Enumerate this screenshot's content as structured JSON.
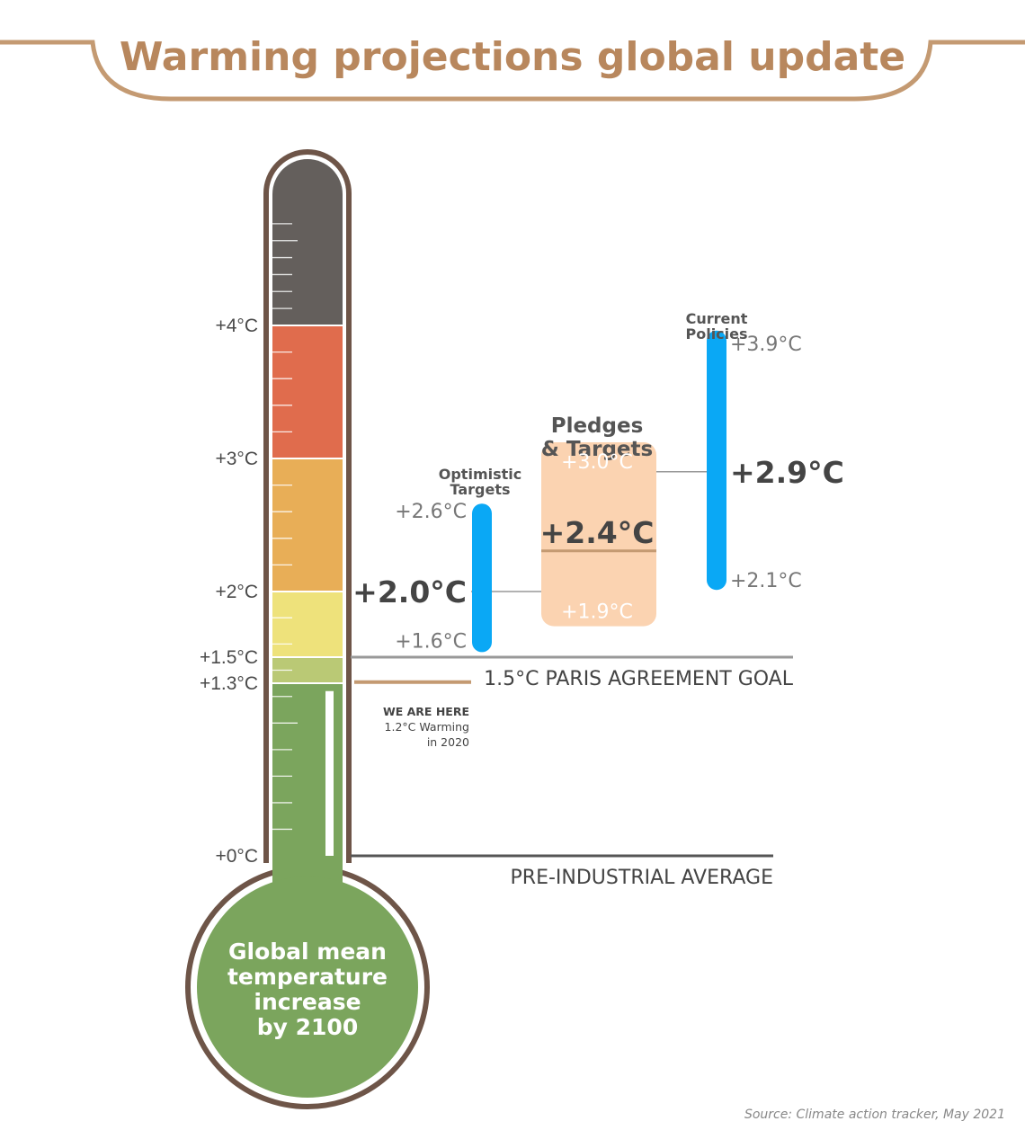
{
  "title": "Warming projections global update",
  "source": "Source: Climate action tracker, May 2021",
  "colors": {
    "accent": "#c49a72",
    "title": "#b8875d",
    "outline": "#6e5548",
    "blue": "#0aa8f5",
    "pledge_fill": "#fbd3b1",
    "bands": [
      "#7ba55d",
      "#bac975",
      "#eee27b",
      "#e8ae57",
      "#e06c4d",
      "#645f5c"
    ]
  },
  "thermometer": {
    "bulb_lines": [
      "Global mean",
      "temperature",
      "increase",
      "by 2100"
    ],
    "tick_labels": [
      "+0°C",
      "+1.3°C",
      "+1.5°C",
      "+2°C",
      "+3°C",
      "+4°C"
    ]
  },
  "markers": {
    "now_lines": [
      "WE ARE HERE",
      "1.2°C Warming",
      "in 2020"
    ],
    "paris_label": "1.5°C PARIS AGREEMENT GOAL",
    "pre_label": "PRE-INDUSTRIAL AVERAGE"
  },
  "chart_data": {
    "type": "bar",
    "title": "Warming projections global update",
    "unit": "°C",
    "ylim": [
      0,
      5.4
    ],
    "scale_ticks": [
      0,
      1.3,
      1.5,
      2,
      3,
      4
    ],
    "bands": [
      {
        "from": 0,
        "to": 1.3
      },
      {
        "from": 1.3,
        "to": 1.5
      },
      {
        "from": 1.5,
        "to": 2
      },
      {
        "from": 2,
        "to": 3
      },
      {
        "from": 3,
        "to": 4
      },
      {
        "from": 4,
        "to": 5.4
      }
    ],
    "current_warming": {
      "value": 1.2,
      "year": 2020,
      "label": "WE ARE HERE"
    },
    "reference_lines": [
      {
        "value": 1.5,
        "label": "1.5°C PARIS AGREEMENT GOAL"
      },
      {
        "value": 0,
        "label": "PRE-INDUSTRIAL AVERAGE"
      }
    ],
    "scenarios": [
      {
        "name_lines": [
          "Optimistic",
          "Targets"
        ],
        "low": 1.6,
        "central": 2.0,
        "high": 2.6,
        "low_label": "+1.6°C",
        "central_label": "+2.0°C",
        "high_label": "+2.6°C"
      },
      {
        "name_lines": [
          "Pledges",
          "& Targets"
        ],
        "low": 1.9,
        "central": 2.4,
        "high": 3.0,
        "low_label": "+1.9°C",
        "central_label": "+2.4°C",
        "high_label": "+3.0°C"
      },
      {
        "name_lines": [
          "Current",
          "Policies"
        ],
        "low": 2.1,
        "central": 2.9,
        "high": 3.9,
        "low_label": "+2.1°C",
        "central_label": "+2.9°C",
        "high_label": "+3.9°C"
      }
    ]
  }
}
